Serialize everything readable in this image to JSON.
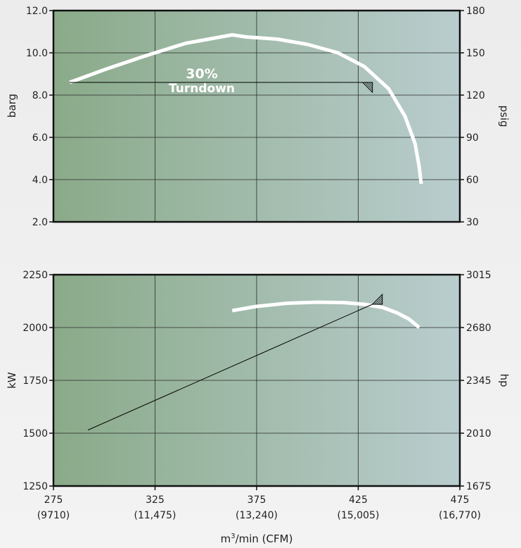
{
  "colors": {
    "panel_left": "#8aaa89",
    "panel_right": "#b9cdce",
    "curve": "#ffffff",
    "frame": "#111111",
    "grid": "#2a2a2a"
  },
  "x_axis": {
    "ticks": [
      {
        "value": 275,
        "label": "275",
        "sub": "(9710)"
      },
      {
        "value": 325,
        "label": "325",
        "sub": "(11,475)"
      },
      {
        "value": 375,
        "label": "375",
        "sub": "(13,240)"
      },
      {
        "value": 425,
        "label": "425",
        "sub": "(15,005)"
      },
      {
        "value": 475,
        "label": "475",
        "sub": "(16,770)"
      }
    ],
    "label_main": "m",
    "label_sup": "3",
    "label_rest": "/min (CFM)"
  },
  "chart_data": [
    {
      "type": "line",
      "xlim": [
        275,
        475
      ],
      "ylim": [
        2.0,
        12.0
      ],
      "ylabel": "barg",
      "y2label": "psig",
      "y_ticks": [
        "2.0",
        "4.0",
        "6.0",
        "8.0",
        "10.0",
        "12.0"
      ],
      "y_tick_values": [
        2,
        4,
        6,
        8,
        10,
        12
      ],
      "y2_ticks": [
        "30",
        "60",
        "90",
        "120",
        "150",
        "180"
      ],
      "grid": true,
      "annotation": {
        "line1": "30%",
        "line2": "Turndown",
        "y_value": 8.6,
        "x_start": 283,
        "x_end": 432
      },
      "series": [
        {
          "x": [
            283,
            300,
            320,
            340,
            363,
            370,
            385,
            400,
            415,
            428,
            440,
            448,
            453,
            455,
            456
          ],
          "y": [
            8.6,
            9.2,
            9.85,
            10.45,
            10.85,
            10.75,
            10.65,
            10.4,
            10.0,
            9.35,
            8.3,
            7.0,
            5.7,
            4.6,
            3.8
          ]
        }
      ]
    },
    {
      "type": "line",
      "xlim": [
        275,
        475
      ],
      "ylim": [
        1250,
        2250
      ],
      "ylabel": "kW",
      "y2label": "hp",
      "y_ticks": [
        "1250",
        "1500",
        "1750",
        "2000",
        "2250"
      ],
      "y_tick_values": [
        1250,
        1500,
        1750,
        2000,
        2250
      ],
      "y2_ticks": [
        "1675",
        "2010",
        "2345",
        "2680",
        "3015"
      ],
      "grid": true,
      "marker": {
        "x": 432,
        "y": 2110
      },
      "series": [
        {
          "x": [
            363,
            375,
            390,
            405,
            418,
            428,
            437,
            444,
            450,
            455
          ],
          "y": [
            2080,
            2100,
            2115,
            2120,
            2118,
            2110,
            2095,
            2070,
            2040,
            2000
          ]
        },
        {
          "x": [
            292,
            432
          ],
          "y": [
            1515,
            2110
          ]
        }
      ]
    }
  ]
}
